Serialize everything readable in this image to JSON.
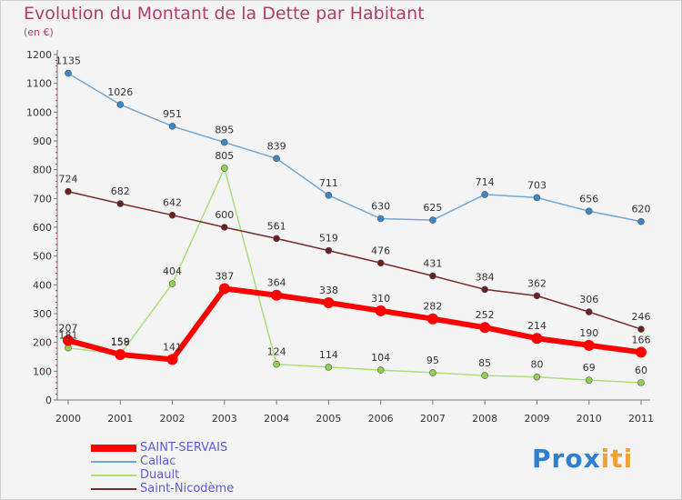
{
  "title": "Evolution du Montant de la Dette par Habitant",
  "subtitle": "(en €)",
  "logo_text": "Prox",
  "logo_text2": "iti",
  "chart_data": {
    "type": "line",
    "categories": [
      "2000",
      "2001",
      "2002",
      "2003",
      "2004",
      "2005",
      "2006",
      "2007",
      "2008",
      "2009",
      "2010",
      "2011"
    ],
    "ylim": [
      0,
      1200
    ],
    "yticks": [
      0,
      100,
      200,
      300,
      400,
      500,
      600,
      700,
      800,
      900,
      1000,
      1100,
      1200
    ],
    "grid": false,
    "legend_position": "bottom-left",
    "series": [
      {
        "name": "SAINT-SERVAIS",
        "color": "#ff0000",
        "marker_color": "#ff0000",
        "width": 6,
        "values": [
          207,
          158,
          141,
          387,
          364,
          338,
          310,
          282,
          252,
          214,
          190,
          166
        ]
      },
      {
        "name": "Callac",
        "color": "#6fa8d6",
        "marker_color": "#3a86c8",
        "width": 1.5,
        "values": [
          1135,
          1026,
          951,
          895,
          839,
          711,
          630,
          625,
          714,
          703,
          656,
          620
        ]
      },
      {
        "name": "Duault",
        "color": "#a8e07a",
        "marker_color": "#8fd14f",
        "width": 1.5,
        "values": [
          181,
          159,
          404,
          805,
          124,
          114,
          104,
          95,
          85,
          80,
          69,
          60
        ]
      },
      {
        "name": "Saint-Nicodème",
        "color": "#7a2a2a",
        "marker_color": "#6b1f1f",
        "width": 1.5,
        "values": [
          724,
          682,
          642,
          600,
          561,
          519,
          476,
          431,
          384,
          362,
          306,
          246
        ]
      }
    ]
  }
}
